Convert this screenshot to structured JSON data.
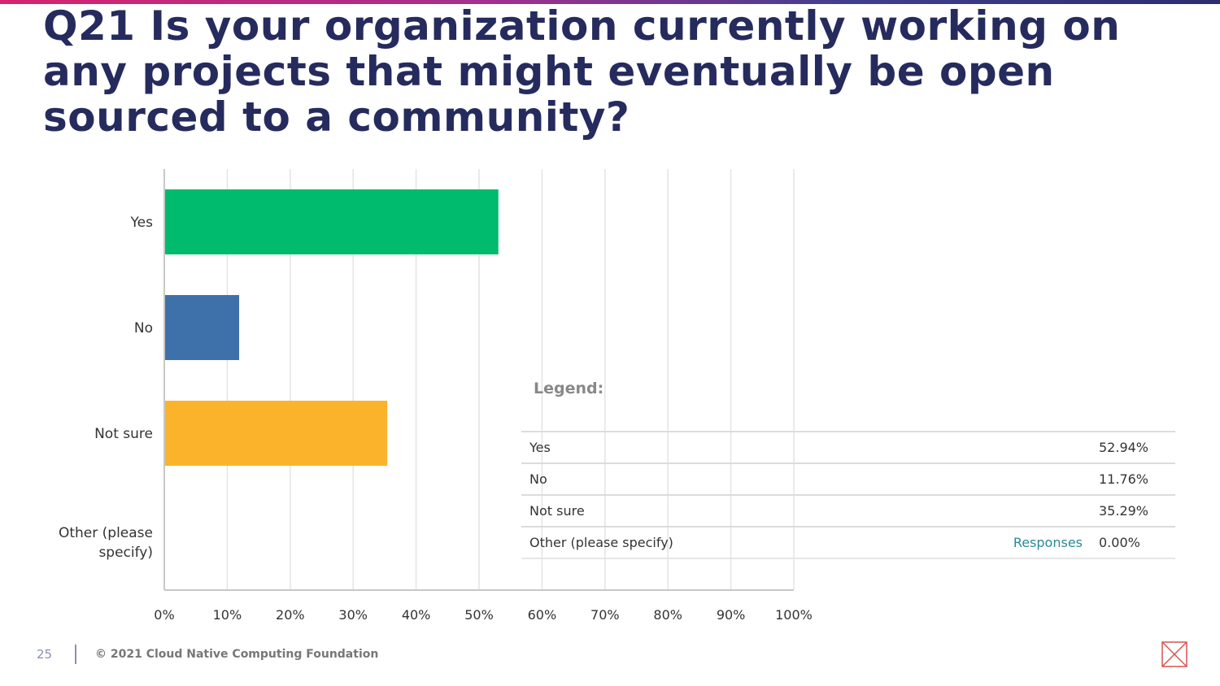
{
  "slide": {
    "title": "Q21 Is your organization currently working on any projects that might eventually be open sourced to a community?",
    "page_number": "25",
    "footer": "© 2021 Cloud Native Computing Foundation"
  },
  "colors": {
    "title": "#262b5e",
    "grid": "#e4e4e4",
    "axis": "#c8c8c8",
    "yes": "#00bb6d",
    "no": "#3e71aa",
    "not_sure": "#fbb32c",
    "other": "#cccccc"
  },
  "icons": {
    "corner": "close-x-box-icon"
  },
  "chart_data": {
    "type": "bar",
    "orientation": "horizontal",
    "categories": [
      "Yes",
      "No",
      "Not sure",
      "Other (please specify)"
    ],
    "values": [
      52.94,
      11.76,
      35.29,
      0.0
    ],
    "colors": [
      "#00bb6d",
      "#3e71aa",
      "#fbb32c",
      "#cccccc"
    ],
    "xlim": [
      0,
      100
    ],
    "xticks": [
      "0%",
      "10%",
      "20%",
      "30%",
      "40%",
      "50%",
      "60%",
      "70%",
      "80%",
      "90%",
      "100%"
    ],
    "grid": true
  },
  "legend": {
    "title": "Legend:",
    "responses_label": "Responses",
    "rows": [
      {
        "label": "Yes",
        "value": "52.94%"
      },
      {
        "label": "No",
        "value": "11.76%"
      },
      {
        "label": "Not sure",
        "value": "35.29%"
      },
      {
        "label": "Other (please specify)",
        "value": "0.00%"
      }
    ]
  }
}
